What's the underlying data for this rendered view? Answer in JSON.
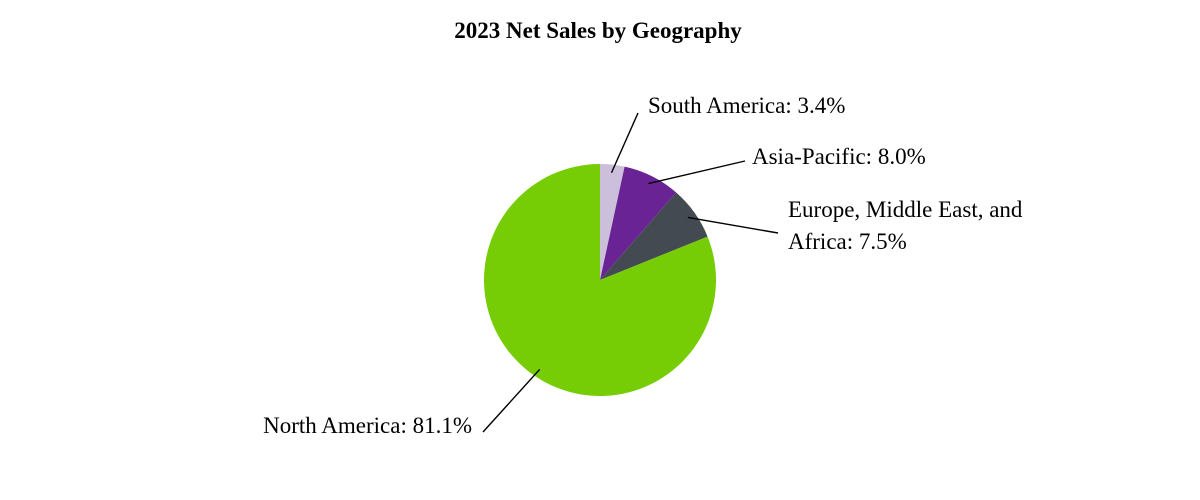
{
  "chart_data": {
    "type": "pie",
    "title": "2023 Net Sales by Geography",
    "values": [
      3.4,
      8.0,
      7.5,
      81.1
    ],
    "value_labels": [
      [
        "South America: 3.4%"
      ],
      [
        "Asia-Pacific: 8.0%"
      ],
      [
        "Europe, Middle East, and",
        "Africa: 7.5%"
      ],
      [
        "North America: 81.1%"
      ]
    ],
    "colors": [
      "#cbbfdc",
      "#6a2394",
      "#444a52",
      "#76cd06"
    ]
  }
}
